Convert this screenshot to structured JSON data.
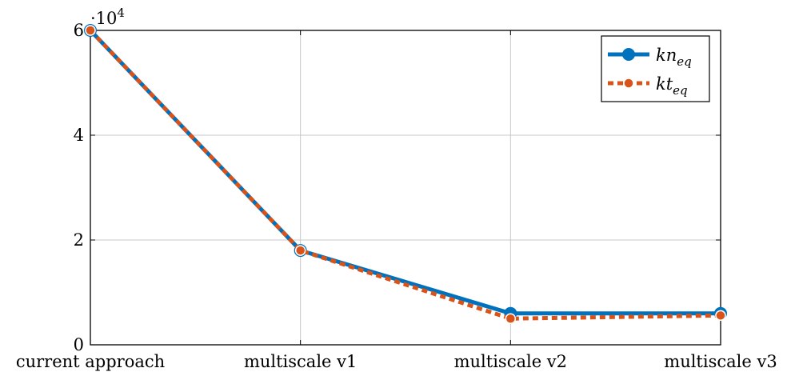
{
  "chart_data": {
    "type": "line",
    "categories": [
      "current approach",
      "multiscale v1",
      "multiscale v2",
      "multiscale v3"
    ],
    "y_multiplier_label": {
      "base": "·10",
      "exponent": "4"
    },
    "yticks": [
      0,
      2,
      4,
      6
    ],
    "yticks_scaled_values": [
      0,
      20000,
      40000,
      60000
    ],
    "ylim": [
      0,
      60000
    ],
    "grid": true,
    "legend_position": "top-right",
    "series": [
      {
        "name": "kn",
        "name_subscript": "eq",
        "color": "#0072BD",
        "style": "solid",
        "values": [
          60000,
          18000,
          6000,
          6000
        ]
      },
      {
        "name": "kt",
        "name_subscript": "eq",
        "color": "#D95319",
        "style": "dashed",
        "values": [
          60000,
          18000,
          5000,
          5600
        ]
      }
    ]
  }
}
